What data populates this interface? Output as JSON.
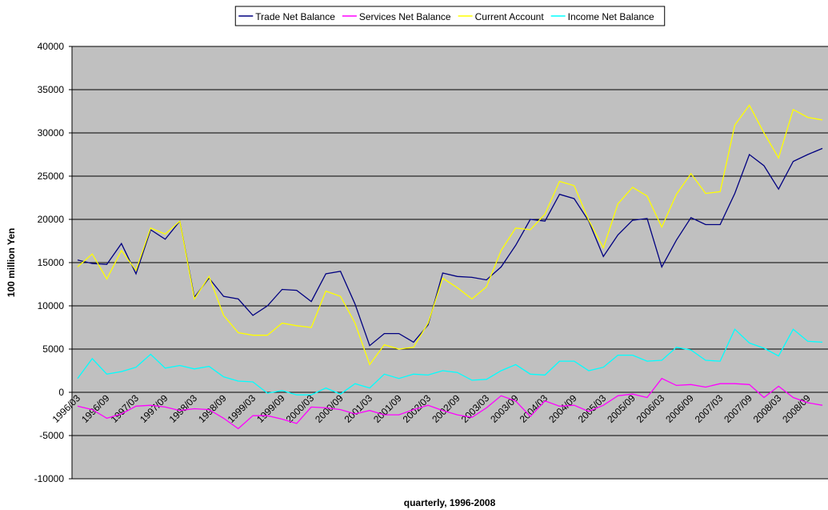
{
  "chart_data": {
    "type": "line",
    "y_label": "100 million Yen",
    "x_label": "quarterly, 1996-2008",
    "categories": [
      "1996/03",
      null,
      "1996/09",
      null,
      "1997/03",
      null,
      "1997/09",
      null,
      "1998/03",
      null,
      "1998/09",
      null,
      "1999/03",
      null,
      "1999/09",
      null,
      "2000/03",
      null,
      "2000/09",
      null,
      "2001/03",
      null,
      "2001/09",
      null,
      "2002/03",
      null,
      "2002/09",
      null,
      "2003/03",
      null,
      "2003/09",
      null,
      "2004/03",
      null,
      "2004/09",
      null,
      "2005/03",
      null,
      "2005/09",
      null,
      "2006/03",
      null,
      "2006/09",
      null,
      "2007/03",
      null,
      "2007/09",
      null,
      "2008/03",
      null,
      "2008/09",
      null
    ],
    "series": [
      {
        "name": "Trade Net Balance",
        "color": "#000080",
        "values": [
          15300,
          14900,
          14800,
          17200,
          13700,
          18800,
          17700,
          19800,
          11000,
          13200,
          11100,
          10800,
          8900,
          10000,
          11900,
          11800,
          10500,
          13700,
          14000,
          10200,
          5400,
          6800,
          6800,
          5800,
          7800,
          13800,
          13400,
          13300,
          13000,
          14500,
          17000,
          20000,
          19800,
          22900,
          22400,
          19800,
          15700,
          18200,
          19900,
          20100,
          14500,
          17600,
          20200,
          19400,
          19400,
          23000,
          27500,
          26200,
          23500,
          26700,
          27500,
          28200
        ]
      },
      {
        "name": "Services Net Balance",
        "color": "#ff00ff",
        "values": [
          -1600,
          -2000,
          -3000,
          -2500,
          -1600,
          -1500,
          -1700,
          -2100,
          -1900,
          -2000,
          -3000,
          -4200,
          -2700,
          -2700,
          -3100,
          -3600,
          -1700,
          -1800,
          -2000,
          -2500,
          -2100,
          -2600,
          -2600,
          -2000,
          -1500,
          -2100,
          -2600,
          -2900,
          -1800,
          -400,
          -1000,
          -2800,
          -1000,
          -1600,
          -1500,
          -2200,
          -1500,
          -400,
          -200,
          -600,
          1600,
          800,
          900,
          600,
          1000,
          1000,
          900,
          -600,
          700,
          -600,
          -1200,
          -1500
        ]
      },
      {
        "name": "Current Account",
        "color": "#ffff00",
        "values": [
          14500,
          16000,
          13100,
          16400,
          14100,
          19000,
          18300,
          19800,
          10800,
          13400,
          8900,
          6900,
          6600,
          6600,
          8000,
          7700,
          7500,
          11700,
          11100,
          8000,
          3200,
          5500,
          5000,
          5200,
          8000,
          13200,
          12100,
          10800,
          12200,
          16400,
          19000,
          18800,
          20600,
          24400,
          23900,
          19900,
          16700,
          21800,
          23700,
          22700,
          19100,
          22900,
          25300,
          23000,
          23200,
          30900,
          33200,
          30000,
          27100,
          32700,
          31800,
          31500
        ]
      },
      {
        "name": "Income Net Balance",
        "color": "#00ffff",
        "values": [
          1600,
          3900,
          2100,
          2400,
          2900,
          4400,
          2800,
          3100,
          2700,
          3000,
          1800,
          1300,
          1200,
          -100,
          200,
          -300,
          -300,
          500,
          -200,
          1000,
          500,
          2100,
          1600,
          2100,
          2000,
          2500,
          2300,
          1400,
          1500,
          2500,
          3200,
          2100,
          2000,
          3600,
          3600,
          2500,
          2900,
          4300,
          4300,
          3600,
          3700,
          5200,
          4900,
          3700,
          3600,
          7300,
          5700,
          5100,
          4200,
          7300,
          5900,
          5800
        ]
      }
    ],
    "ylim": [
      -10000,
      40000
    ],
    "yticks": [
      -10000,
      -5000,
      0,
      5000,
      10000,
      15000,
      20000,
      25000,
      30000,
      35000,
      40000
    ],
    "grid": true,
    "plot_background": "#c0c0c0",
    "legend": "top"
  }
}
